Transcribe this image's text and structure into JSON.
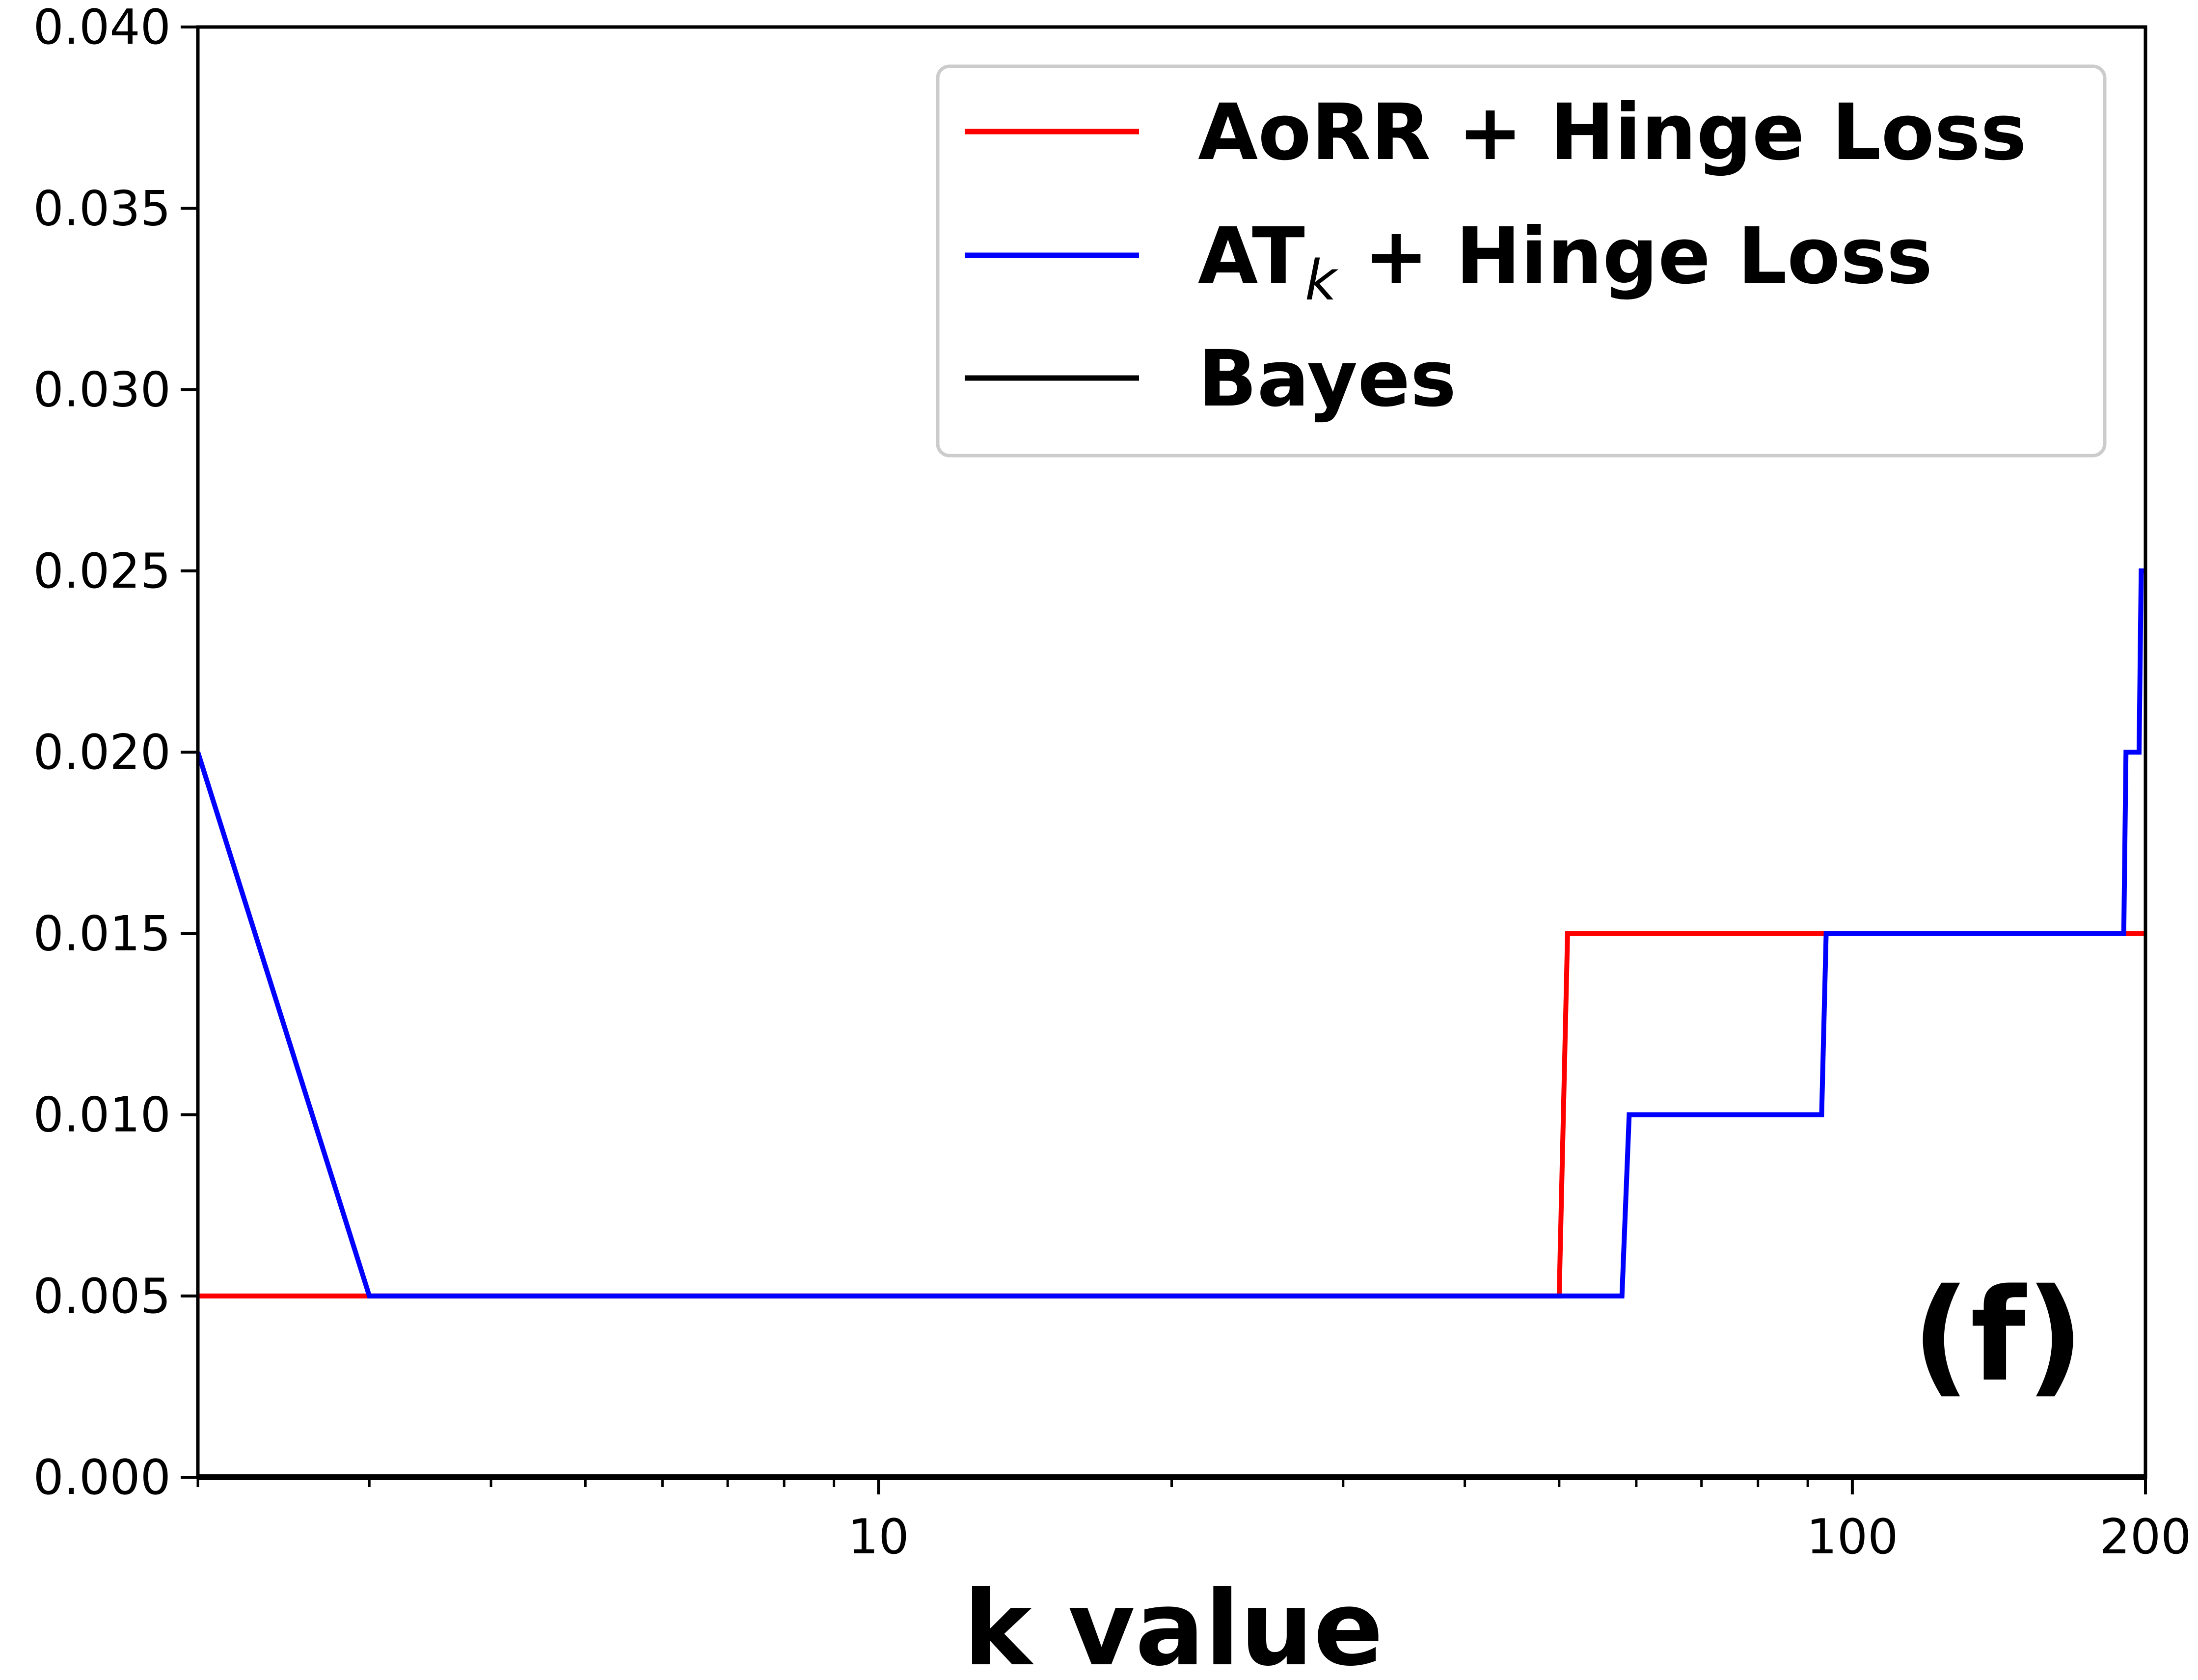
{
  "chart_data": {
    "type": "line",
    "title": "",
    "xlabel": "k value",
    "ylabel": "",
    "x_scale": "log",
    "xlim": [
      2,
      200
    ],
    "ylim": [
      0,
      0.04
    ],
    "x_ticks": [
      {
        "value": 10,
        "label": "10"
      },
      {
        "value": 100,
        "label": "100"
      },
      {
        "value": 200,
        "label": "200"
      }
    ],
    "y_ticks": [
      {
        "value": 0.0,
        "label": "0.000"
      },
      {
        "value": 0.005,
        "label": "0.005"
      },
      {
        "value": 0.01,
        "label": "0.010"
      },
      {
        "value": 0.015,
        "label": "0.015"
      },
      {
        "value": 0.02,
        "label": "0.020"
      },
      {
        "value": 0.025,
        "label": "0.025"
      },
      {
        "value": 0.03,
        "label": "0.030"
      },
      {
        "value": 0.035,
        "label": "0.035"
      },
      {
        "value": 0.04,
        "label": "0.040"
      }
    ],
    "grid": false,
    "legend_position": "top-right",
    "annotation": "(f)",
    "series": [
      {
        "name": "AoRR + Hinge Loss",
        "color": "#ff0000",
        "points": [
          [
            2,
            0.005
          ],
          [
            3,
            0.005
          ],
          [
            50,
            0.005
          ],
          [
            51,
            0.015
          ],
          [
            200,
            0.015
          ]
        ]
      },
      {
        "name": "AT_k + Hinge Loss",
        "color": "#0000ff",
        "points": [
          [
            2,
            0.02
          ],
          [
            3,
            0.005
          ],
          [
            58,
            0.005
          ],
          [
            59,
            0.01
          ],
          [
            93,
            0.01
          ],
          [
            94,
            0.015
          ],
          [
            190,
            0.015
          ],
          [
            191,
            0.02
          ],
          [
            197,
            0.02
          ],
          [
            198,
            0.025
          ],
          [
            200,
            0.025
          ]
        ]
      },
      {
        "name": "Bayes",
        "color": "#000000",
        "points": [
          [
            2,
            0.0
          ],
          [
            200,
            0.0
          ]
        ]
      }
    ]
  }
}
